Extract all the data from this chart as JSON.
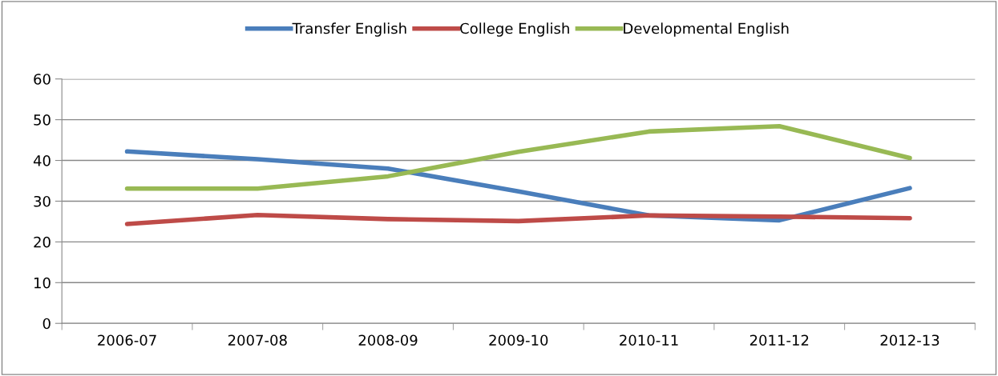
{
  "chart_data": {
    "type": "line",
    "categories": [
      "2006-07",
      "2007-08",
      "2008-09",
      "2009-10",
      "2010-11",
      "2011-12",
      "2012-13"
    ],
    "series": [
      {
        "name": "Transfer English",
        "color": "#4a7ebb",
        "values": [
          42.2,
          40.3,
          38.0,
          32.4,
          26.5,
          25.3,
          33.2
        ]
      },
      {
        "name": "College English",
        "color": "#be4b48",
        "values": [
          24.4,
          26.6,
          25.6,
          25.1,
          26.5,
          26.2,
          25.8
        ]
      },
      {
        "name": "Developmental English",
        "color": "#98b954",
        "values": [
          33.1,
          33.1,
          36.1,
          42.1,
          47.1,
          48.4,
          40.6
        ]
      }
    ],
    "ylim": [
      0,
      60
    ],
    "yticks": [
      0,
      10,
      20,
      30,
      40,
      50,
      60
    ],
    "grid": "y",
    "legend": "top",
    "marker": "none",
    "line_style": "solid"
  }
}
